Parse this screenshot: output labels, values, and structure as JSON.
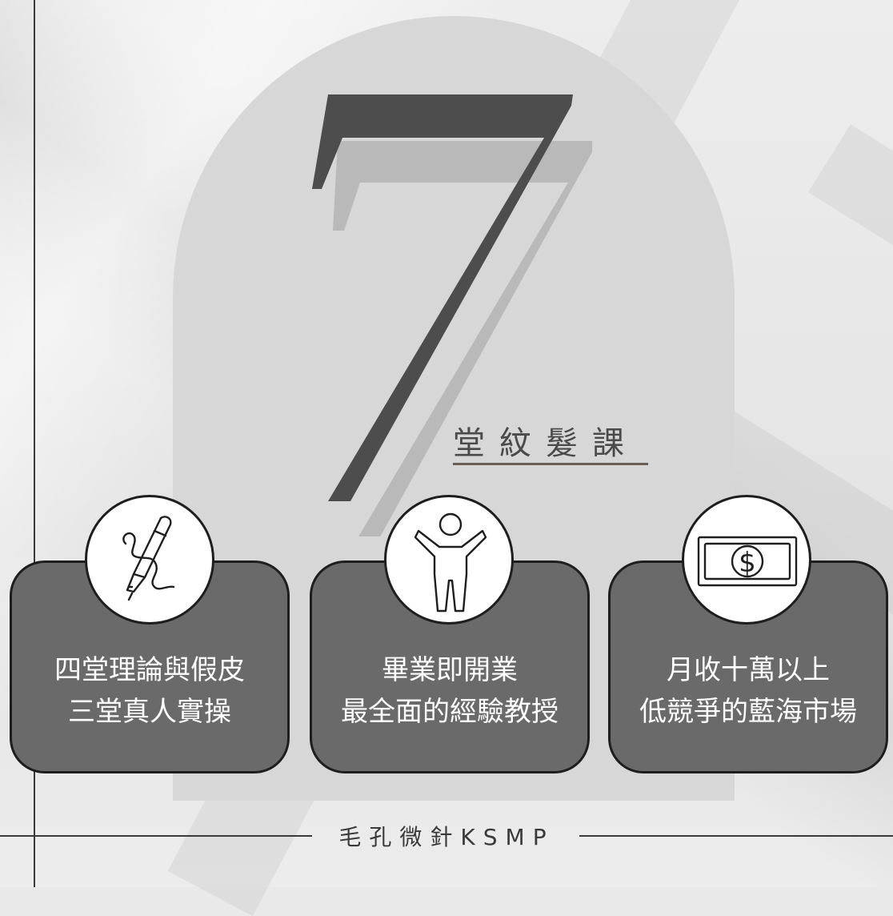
{
  "big_number": "7",
  "title": "堂紋髮課",
  "cards": [
    {
      "icon": "fountain-pen-icon",
      "line1": "四堂理論與假皮",
      "line2": "三堂真人實操"
    },
    {
      "icon": "person-icon",
      "line1": "畢業即開業",
      "line2": "最全面的經驗教授"
    },
    {
      "icon": "dollar-bill-icon",
      "line1": "月收十萬以上",
      "line2": "低競爭的藍海市場"
    }
  ],
  "footer": "毛孔微針KSMP",
  "colors": {
    "card": "#6a6a6a",
    "arch": "#d7d7d7",
    "seven": "#4d4d4d",
    "seven_shadow": "#b9b9b9"
  }
}
